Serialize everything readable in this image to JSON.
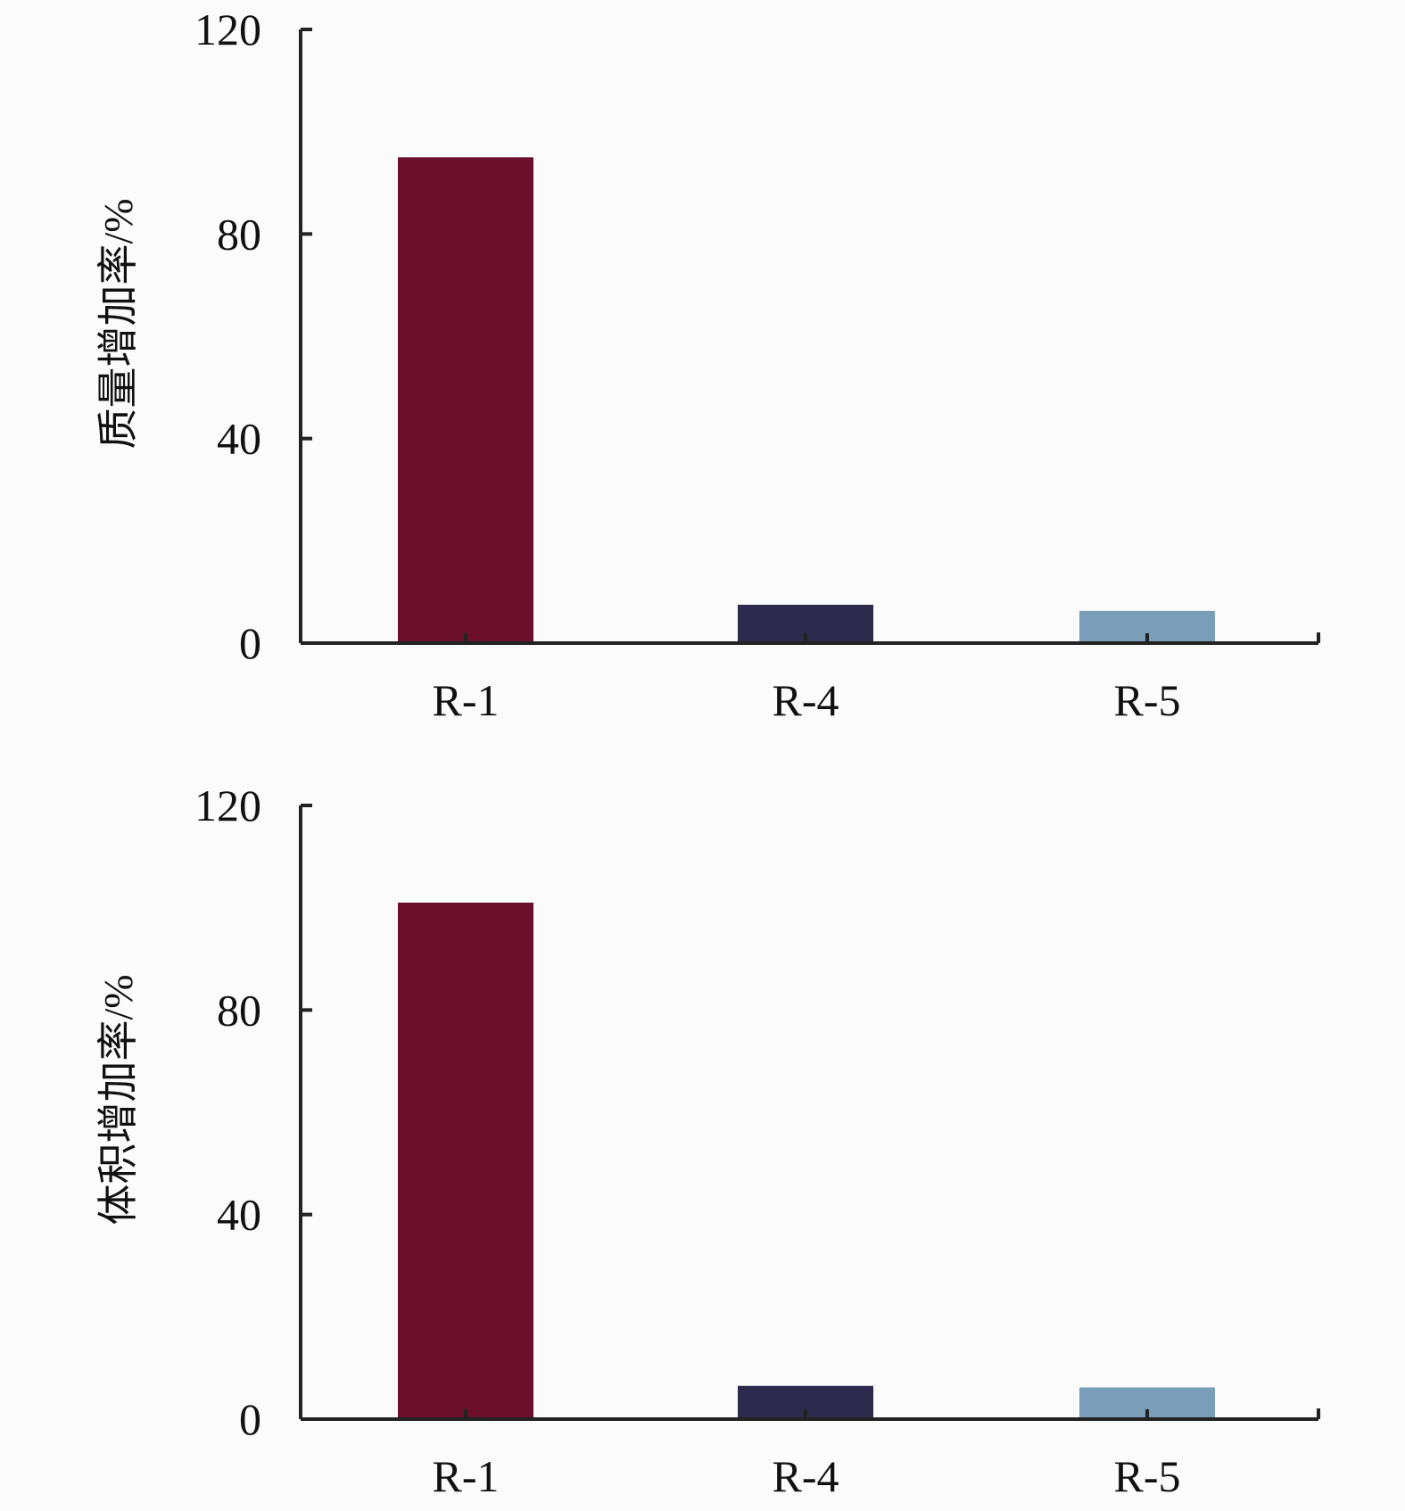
{
  "chart_data": [
    {
      "type": "bar",
      "categories": [
        "R-1",
        "R-4",
        "R-5"
      ],
      "values": [
        95,
        7.5,
        6.3
      ],
      "colors": [
        "#6b0f2c",
        "#2d2a4e",
        "#7a9eb8"
      ],
      "ylabel": "质量增加率/%",
      "xlabel": "",
      "ylim": [
        0,
        120
      ],
      "yticks": [
        "0",
        "40",
        "80",
        "120"
      ],
      "grid": false
    },
    {
      "type": "bar",
      "categories": [
        "R-1",
        "R-4",
        "R-5"
      ],
      "values": [
        101,
        6.5,
        6.2
      ],
      "colors": [
        "#6b0f2c",
        "#2d2a4e",
        "#7a9eb8"
      ],
      "ylabel": "体积增加率/%",
      "xlabel": "",
      "ylim": [
        0,
        120
      ],
      "yticks": [
        "0",
        "40",
        "80",
        "120"
      ],
      "grid": false
    }
  ]
}
